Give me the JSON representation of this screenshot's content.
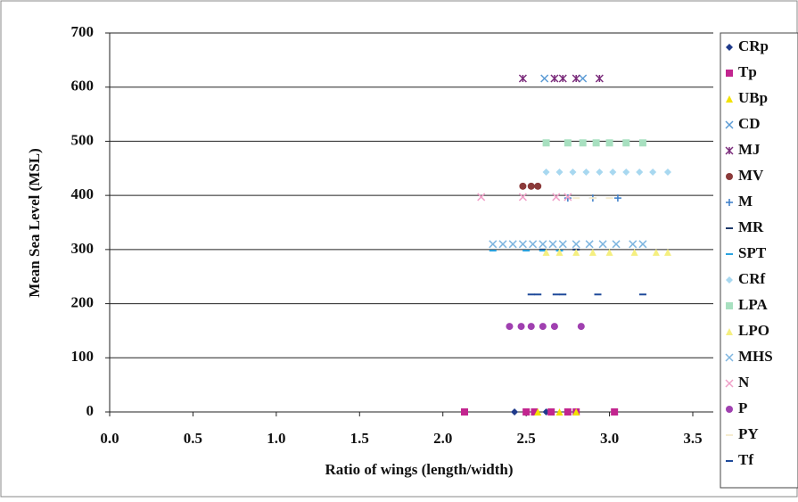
{
  "chart_data": {
    "type": "scatter",
    "x_label": "Ratio of wings (length/width)",
    "y_label": "Mean Sea Level (MSL)",
    "xlim": [
      0,
      3.5
    ],
    "xticks": [
      {
        "value": 0,
        "label": "0.0"
      },
      0.5,
      {
        "value": 1,
        "label": "1.0"
      },
      1.5,
      {
        "value": 2,
        "label": "2.0"
      },
      2.5,
      {
        "value": 3,
        "label": "3.0"
      },
      3.5
    ],
    "ylim": [
      0,
      700
    ],
    "yticks": [
      0,
      100,
      200,
      300,
      400,
      500,
      600,
      700
    ],
    "grid": true,
    "legend": "right",
    "series": [
      {
        "name": "CRp",
        "color": "#1f3a8a",
        "marker": "diamond",
        "x": [
          2.43,
          2.62
        ],
        "values": [
          0,
          0
        ]
      },
      {
        "name": "Tp",
        "color": "#c2258f",
        "marker": "square",
        "x": [
          2.13,
          2.5,
          2.55,
          2.65,
          2.75,
          2.8,
          3.03
        ],
        "values": [
          0,
          0,
          0,
          0,
          0,
          0,
          0
        ]
      },
      {
        "name": "UBp",
        "color": "#f2e200",
        "marker": "triangle",
        "x": [
          2.57,
          2.7,
          2.8
        ],
        "values": [
          0,
          0,
          0
        ]
      },
      {
        "name": "CD",
        "color": "#5b9bd5",
        "marker": "x",
        "x": [
          2.61,
          2.84
        ],
        "values": [
          616,
          616
        ]
      },
      {
        "name": "MJ",
        "color": "#7b2c7b",
        "marker": "asterisk",
        "x": [
          2.48,
          2.67,
          2.72,
          2.8,
          2.94
        ],
        "values": [
          616,
          616,
          616,
          616,
          616
        ]
      },
      {
        "name": "MV",
        "color": "#8b3a3a",
        "marker": "circle",
        "x": [
          2.48,
          2.53,
          2.57
        ],
        "values": [
          417,
          417,
          417
        ]
      },
      {
        "name": "M",
        "color": "#3a7dc9",
        "marker": "plus",
        "x": [
          2.75,
          2.9,
          3.05
        ],
        "values": [
          395,
          395,
          395
        ]
      },
      {
        "name": "MR",
        "color": "#1f3a6a",
        "marker": "dash",
        "x": [
          2.6,
          2.8
        ],
        "values": [
          300,
          300
        ]
      },
      {
        "name": "SPT",
        "color": "#2aa3e0",
        "marker": "dash",
        "x": [
          2.3,
          2.5,
          2.6,
          2.7
        ],
        "values": [
          298,
          298,
          298,
          298
        ]
      },
      {
        "name": "CRf",
        "color": "#a8d8f0",
        "marker": "diamond",
        "x": [
          2.62,
          2.7,
          2.78,
          2.86,
          2.94,
          3.02,
          3.1,
          3.18,
          3.26,
          3.35
        ],
        "values": [
          443,
          443,
          443,
          443,
          443,
          443,
          443,
          443,
          443,
          443
        ]
      },
      {
        "name": "LPA",
        "color": "#a8e0c0",
        "marker": "square",
        "x": [
          2.62,
          2.75,
          2.84,
          2.92,
          3.0,
          3.1,
          3.2
        ],
        "values": [
          497,
          497,
          497,
          497,
          497,
          497,
          497
        ]
      },
      {
        "name": "LPO",
        "color": "#f5ef80",
        "marker": "triangle",
        "x": [
          2.62,
          2.7,
          2.8,
          2.9,
          3.0,
          3.15,
          3.28,
          3.35
        ],
        "values": [
          295,
          295,
          295,
          295,
          295,
          295,
          295,
          295
        ]
      },
      {
        "name": "MHS",
        "color": "#7fb6e0",
        "marker": "x",
        "x": [
          2.3,
          2.36,
          2.42,
          2.48,
          2.54,
          2.6,
          2.66,
          2.72,
          2.8,
          2.88,
          2.96,
          3.04,
          3.14,
          3.2
        ],
        "values": [
          310,
          310,
          310,
          310,
          310,
          310,
          310,
          310,
          310,
          310,
          310,
          310,
          310,
          310
        ]
      },
      {
        "name": "N",
        "color": "#f0a0c8",
        "marker": "x",
        "x": [
          2.23,
          2.48,
          2.68,
          2.75
        ],
        "values": [
          397,
          397,
          397,
          397
        ]
      },
      {
        "name": "P",
        "color": "#a040b0",
        "marker": "circle",
        "x": [
          2.4,
          2.47,
          2.53,
          2.6,
          2.67,
          2.83
        ],
        "values": [
          158,
          158,
          158,
          158,
          158,
          158
        ]
      },
      {
        "name": "PY",
        "color": "#f5ecd0",
        "marker": "dash",
        "x": [
          2.8,
          2.9,
          3.0
        ],
        "values": [
          395,
          395,
          395
        ]
      },
      {
        "name": "Tf",
        "color": "#1f4a9a",
        "marker": "dash",
        "x": [
          2.53,
          2.57,
          2.68,
          2.72,
          2.93,
          3.2
        ],
        "values": [
          217,
          217,
          217,
          217,
          217,
          217
        ]
      }
    ]
  }
}
